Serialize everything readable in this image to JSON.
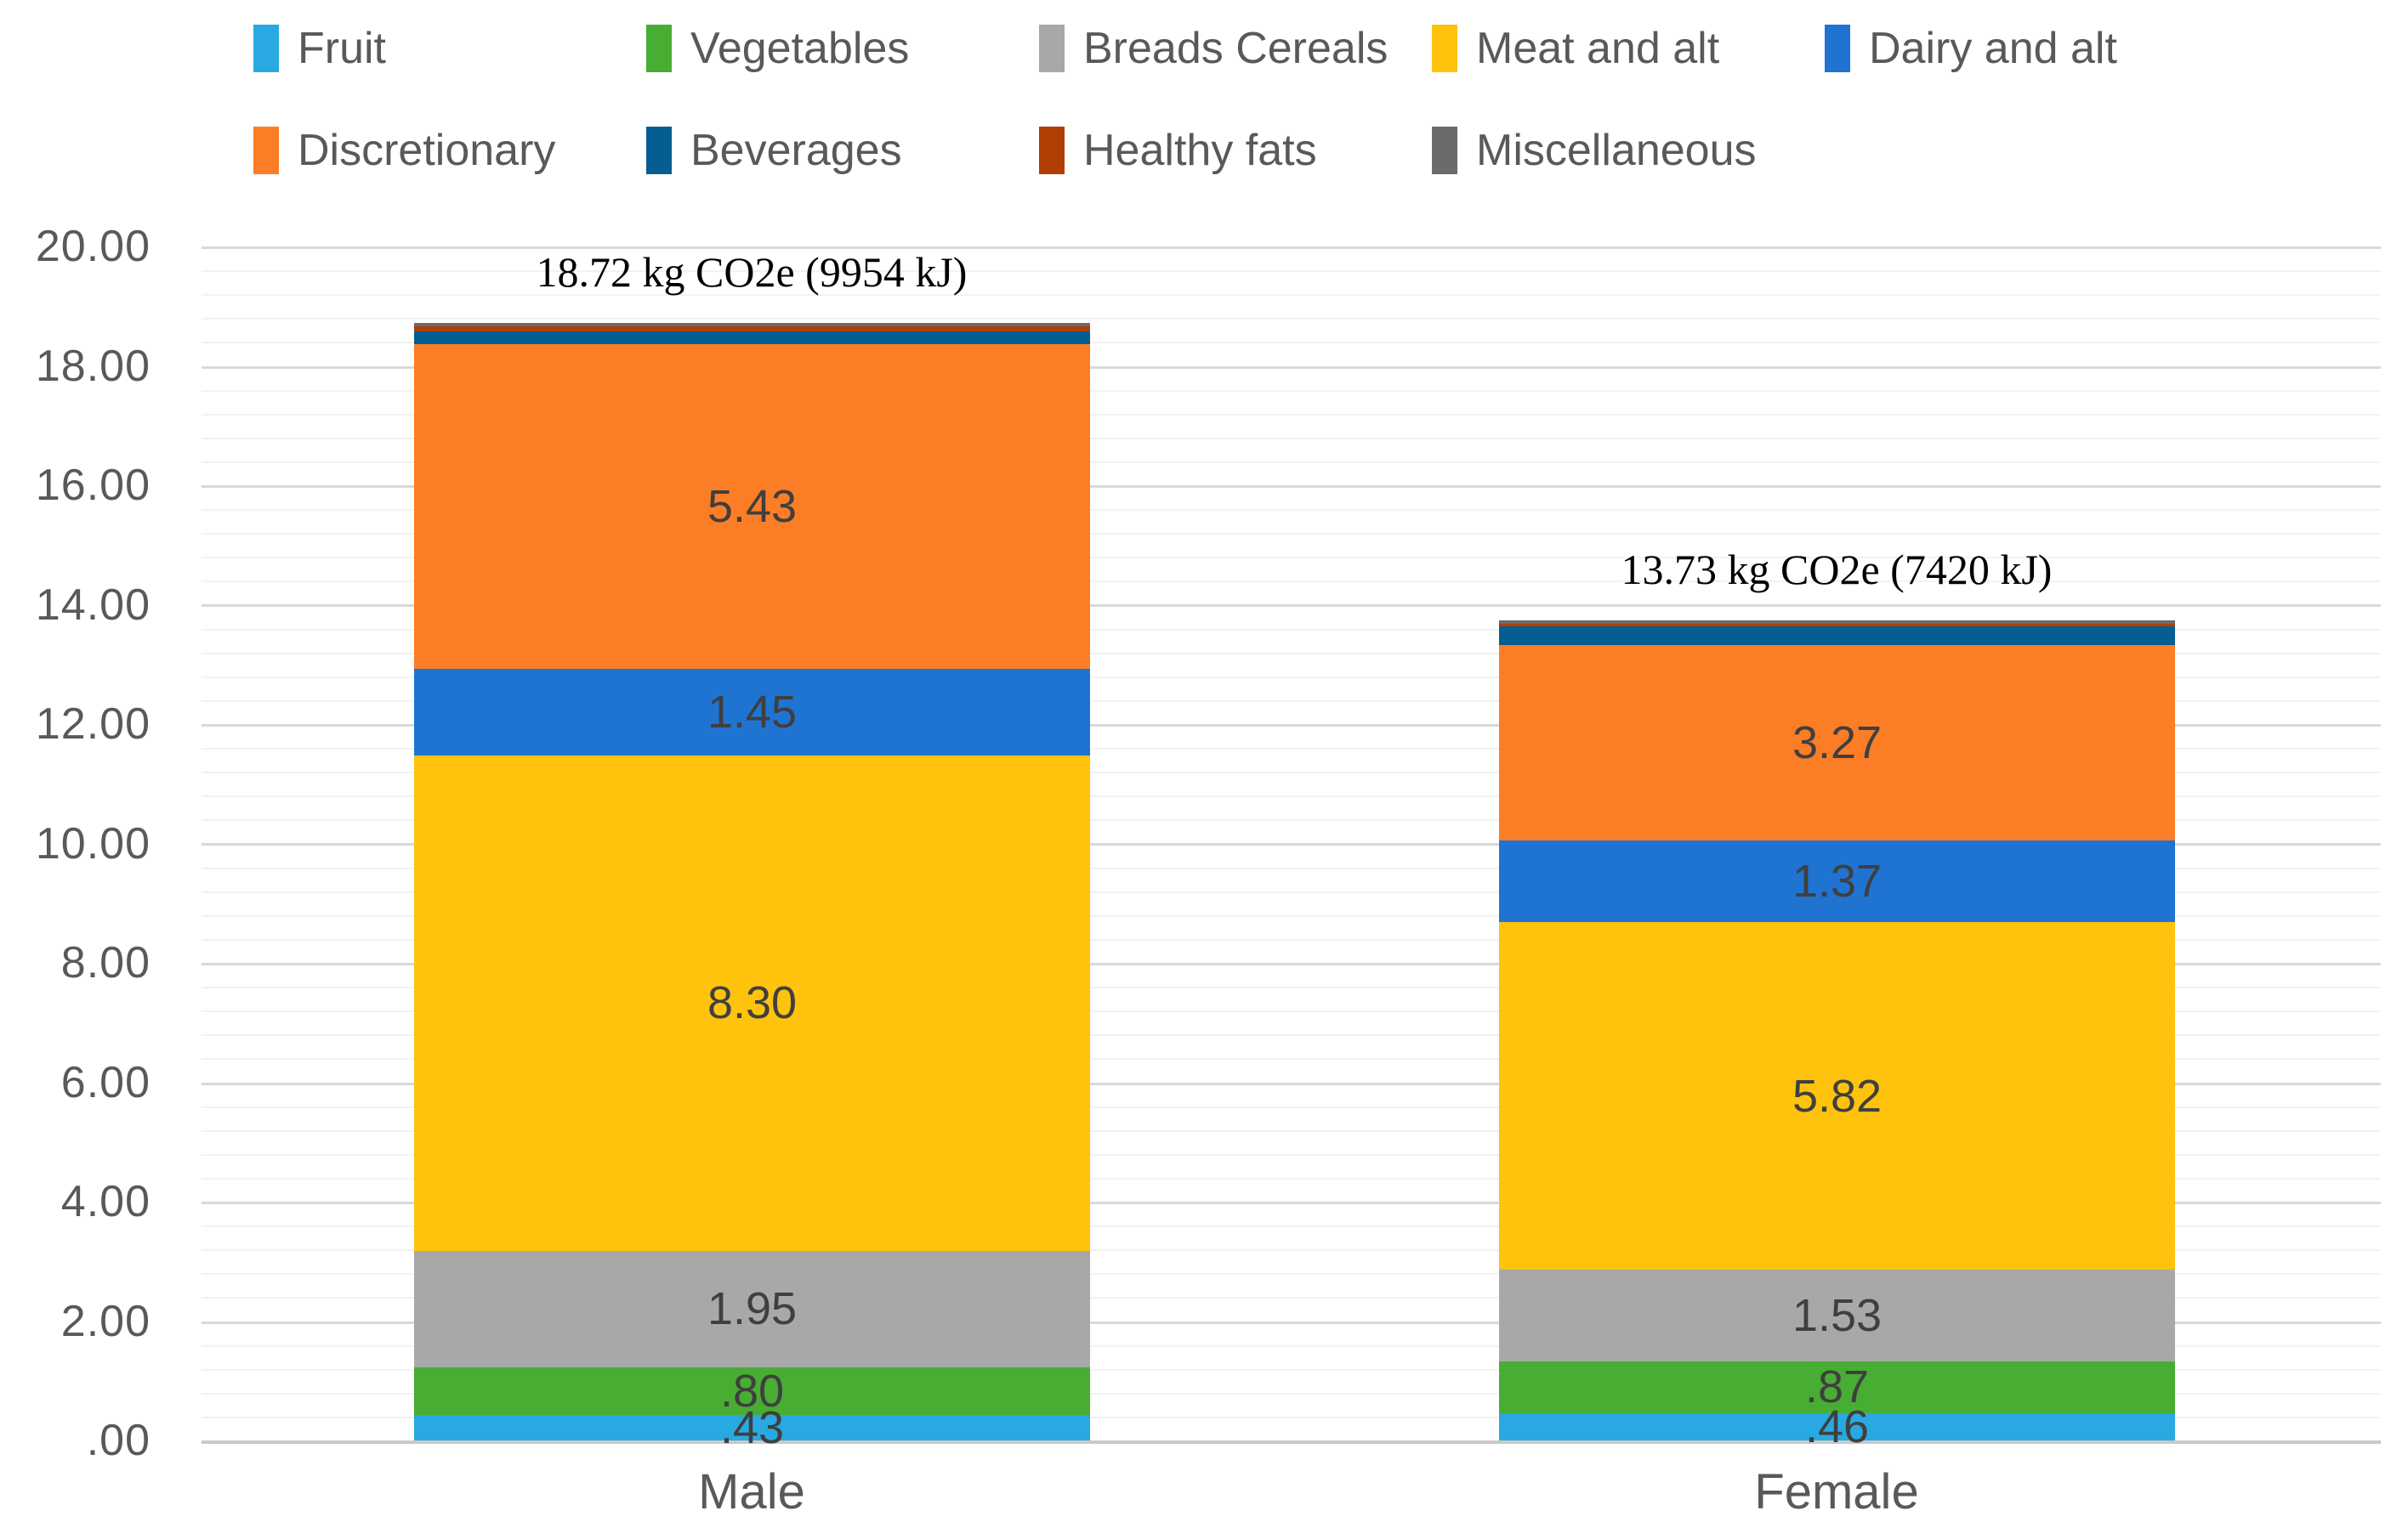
{
  "chart_data": {
    "type": "bar",
    "stacked": true,
    "categories": [
      "Male",
      "Female"
    ],
    "series": [
      {
        "name": "Fruit",
        "color": "#29A9E1",
        "values": [
          0.43,
          0.46
        ],
        "data_labels": [
          ".43",
          ".46"
        ]
      },
      {
        "name": "Vegetables",
        "color": "#48AD33",
        "values": [
          0.8,
          0.87
        ],
        "data_labels": [
          ".80",
          ".87"
        ]
      },
      {
        "name": "Breads Cereals",
        "color": "#A8A8A8",
        "values": [
          1.95,
          1.53
        ],
        "data_labels": [
          "1.95",
          "1.53"
        ]
      },
      {
        "name": "Meat and alt",
        "color": "#FFC20D",
        "values": [
          8.3,
          5.82
        ],
        "data_labels": [
          "8.30",
          "5.82"
        ]
      },
      {
        "name": "Dairy and alt",
        "color": "#1F74D2",
        "values": [
          1.45,
          1.37
        ],
        "data_labels": [
          "1.45",
          "1.37"
        ]
      },
      {
        "name": "Discretionary",
        "color": "#FB7D26",
        "values": [
          5.43,
          3.27
        ],
        "data_labels": [
          "5.43",
          "3.27"
        ]
      },
      {
        "name": "Beverages",
        "color": "#055D91",
        "values": [
          0.21,
          0.32
        ],
        "data_labels": [
          "",
          ""
        ]
      },
      {
        "name": "Healthy fats",
        "color": "#AF3F04",
        "values": [
          0.09,
          0.04
        ],
        "data_labels": [
          "",
          ""
        ]
      },
      {
        "name": "Miscellaneous",
        "color": "#6B6B6B",
        "values": [
          0.06,
          0.05
        ],
        "data_labels": [
          "",
          ""
        ]
      }
    ],
    "bar_annotations": [
      "18.72 kg CO2e (9954 kJ)",
      "13.73 kg CO2e (7420 kJ)"
    ],
    "totals": [
      18.72,
      13.73
    ],
    "ylim": [
      0,
      20
    ],
    "y_ticks": [
      "20.00",
      "18.00",
      "16.00",
      "14.00",
      "12.00",
      "10.00",
      "8.00",
      "6.00",
      "4.00",
      "2.00",
      ".00"
    ],
    "y_major_unit": 2.0,
    "y_minor_unit": 0.4,
    "grid": "major+minor",
    "legend_position": "top-left",
    "legend_rows": [
      [
        "Fruit",
        "Vegetables",
        "Breads Cereals",
        "Meat and alt",
        "Dairy and alt"
      ],
      [
        "Discretionary",
        "Beverages",
        "Healthy fats",
        "Miscellaneous"
      ]
    ]
  },
  "style_colors": {
    "axis_text": "#595959",
    "segment_label_text": "#3F3F3F",
    "annotation_text": "#000000",
    "legend_text": "#595959",
    "gridline_major": "#D9D9D9",
    "gridline_minor": "#F2F2F2",
    "axis_line": "#C9C9C9",
    "background": "#FFFFFF"
  }
}
